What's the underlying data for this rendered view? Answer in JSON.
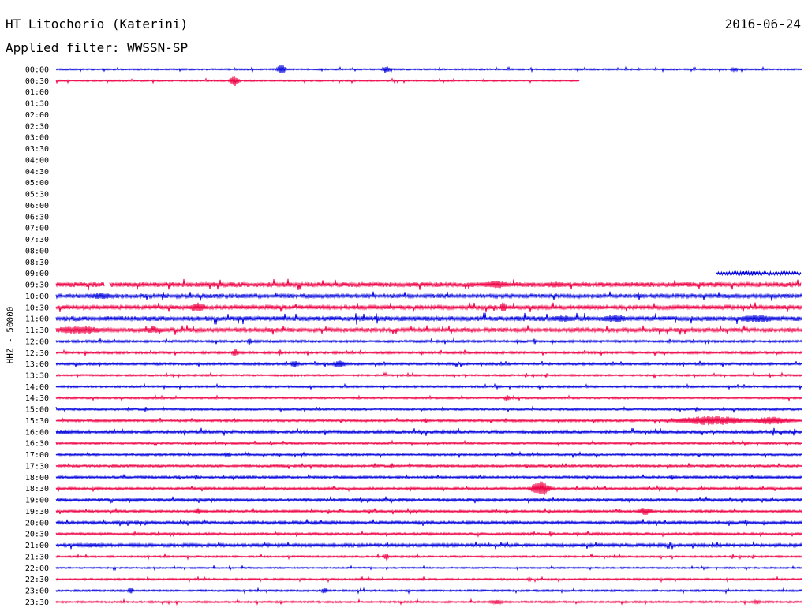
{
  "header": {
    "station": "HT Litochorio (Katerini)",
    "date": "2016-06-24",
    "filter": "Applied filter: WWSSN-SP",
    "ylabel": "HHZ - 50000"
  },
  "colors": {
    "a": "#0000dd",
    "b": "#ee0044"
  },
  "chart_data": {
    "type": "line",
    "title": "HT Litochorio (Katerini)",
    "subtitle": "Applied filter: WWSSN-SP",
    "date": "2016-06-24",
    "ylabel": "HHZ - 50000",
    "xlabel": "",
    "row_minutes": 30,
    "row_labels": [
      "00:00",
      "00:30",
      "01:00",
      "01:30",
      "02:00",
      "02:30",
      "03:00",
      "03:30",
      "04:00",
      "04:30",
      "05:00",
      "05:30",
      "06:00",
      "06:30",
      "07:00",
      "07:30",
      "08:00",
      "08:30",
      "09:00",
      "09:30",
      "10:00",
      "10:30",
      "11:00",
      "11:30",
      "12:00",
      "12:30",
      "13:00",
      "13:30",
      "14:00",
      "14:30",
      "15:00",
      "15:30",
      "16:00",
      "16:30",
      "17:00",
      "17:30",
      "18:00",
      "18:30",
      "19:00",
      "19:30",
      "20:00",
      "20:30",
      "21:00",
      "21:30",
      "22:00",
      "22:30",
      "23:00",
      "23:30"
    ],
    "traces": [
      {
        "row": "00:00",
        "start": 0,
        "end": 1,
        "noise": 1,
        "events": [
          [
            0.302,
            0.006,
            6
          ],
          [
            0.443,
            0.005,
            5
          ],
          [
            0.91,
            0.005,
            3
          ]
        ]
      },
      {
        "row": "00:30",
        "start": 0,
        "end": 0.702,
        "noise": 1,
        "events": [
          [
            0.239,
            0.006,
            7
          ]
        ]
      },
      {
        "row": "09:00",
        "start": 0.886,
        "end": 1,
        "noise": 2,
        "events": [
          [
            0.93,
            0.02,
            3
          ]
        ]
      },
      {
        "row": "09:30",
        "start": 0,
        "end": 1,
        "noise": 3,
        "gaps": [
          [
            0.065,
            0.072
          ]
        ],
        "events": [
          [
            0.59,
            0.02,
            5
          ],
          [
            0.67,
            0.02,
            4
          ]
        ]
      },
      {
        "row": "10:00",
        "start": 0,
        "end": 1,
        "noise": 2.5,
        "events": [
          [
            0.06,
            0.02,
            4
          ]
        ]
      },
      {
        "row": "10:30",
        "start": 0,
        "end": 1,
        "noise": 2.5,
        "events": [
          [
            0.19,
            0.012,
            6
          ],
          [
            0.6,
            0.004,
            8
          ]
        ]
      },
      {
        "row": "11:00",
        "start": 0,
        "end": 1,
        "noise": 3,
        "events": [
          [
            0.68,
            0.02,
            4
          ],
          [
            0.75,
            0.02,
            5
          ],
          [
            0.94,
            0.03,
            5
          ]
        ]
      },
      {
        "row": "11:30",
        "start": 0,
        "end": 1,
        "noise": 2.5,
        "events": [
          [
            0.03,
            0.04,
            5
          ],
          [
            0.13,
            0.02,
            4
          ]
        ]
      },
      {
        "row": "12:00",
        "start": 0,
        "end": 1,
        "noise": 1.5,
        "events": [
          [
            0.26,
            0.003,
            5
          ]
        ]
      },
      {
        "row": "12:30",
        "start": 0,
        "end": 1,
        "noise": 1.5,
        "events": [
          [
            0.24,
            0.004,
            6
          ],
          [
            0.3,
            0.002,
            5
          ]
        ]
      },
      {
        "row": "13:00",
        "start": 0,
        "end": 1,
        "noise": 1.5,
        "events": [
          [
            0.32,
            0.006,
            5
          ],
          [
            0.38,
            0.008,
            5
          ]
        ]
      },
      {
        "row": "13:30",
        "start": 0,
        "end": 1,
        "noise": 1.2,
        "events": []
      },
      {
        "row": "14:00",
        "start": 0,
        "end": 1,
        "noise": 1.3,
        "events": []
      },
      {
        "row": "14:30",
        "start": 0,
        "end": 1,
        "noise": 1.2,
        "events": [
          [
            0.605,
            0.004,
            4
          ]
        ]
      },
      {
        "row": "15:00",
        "start": 0,
        "end": 1,
        "noise": 1.3,
        "events": []
      },
      {
        "row": "15:30",
        "start": 0,
        "end": 1,
        "noise": 1.5,
        "events": [
          [
            0.88,
            0.05,
            6
          ],
          [
            0.96,
            0.03,
            5
          ]
        ]
      },
      {
        "row": "16:00",
        "start": 0,
        "end": 1,
        "noise": 2,
        "events": [
          [
            0.01,
            0.02,
            3
          ]
        ]
      },
      {
        "row": "16:30",
        "start": 0,
        "end": 1,
        "noise": 1.3,
        "events": []
      },
      {
        "row": "17:00",
        "start": 0,
        "end": 1,
        "noise": 1.3,
        "events": [
          [
            0.23,
            0.005,
            3
          ]
        ]
      },
      {
        "row": "17:30",
        "start": 0,
        "end": 1,
        "noise": 1.5,
        "events": []
      },
      {
        "row": "18:00",
        "start": 0,
        "end": 1,
        "noise": 1.5,
        "events": []
      },
      {
        "row": "18:30",
        "start": 0,
        "end": 1,
        "noise": 1.5,
        "events": [
          [
            0.65,
            0.012,
            10
          ]
        ]
      },
      {
        "row": "19:00",
        "start": 0,
        "end": 1,
        "noise": 1.8,
        "events": []
      },
      {
        "row": "19:30",
        "start": 0,
        "end": 1,
        "noise": 1.5,
        "events": [
          [
            0.19,
            0.004,
            4
          ],
          [
            0.79,
            0.01,
            5
          ]
        ]
      },
      {
        "row": "20:00",
        "start": 0,
        "end": 1,
        "noise": 1.8,
        "events": []
      },
      {
        "row": "20:30",
        "start": 0,
        "end": 1,
        "noise": 1.5,
        "events": []
      },
      {
        "row": "21:00",
        "start": 0,
        "end": 1,
        "noise": 2,
        "events": [
          [
            0.05,
            0.02,
            3
          ]
        ]
      },
      {
        "row": "21:30",
        "start": 0,
        "end": 1,
        "noise": 1.2,
        "events": [
          [
            0.443,
            0.003,
            5
          ]
        ]
      },
      {
        "row": "22:00",
        "start": 0,
        "end": 1,
        "noise": 1,
        "events": []
      },
      {
        "row": "22:30",
        "start": 0,
        "end": 1,
        "noise": 1.2,
        "events": [
          [
            0.635,
            0.003,
            3
          ]
        ]
      },
      {
        "row": "23:00",
        "start": 0,
        "end": 1,
        "noise": 1.2,
        "events": [
          [
            0.1,
            0.004,
            4
          ],
          [
            0.36,
            0.004,
            4
          ]
        ]
      },
      {
        "row": "23:30",
        "start": 0,
        "end": 1,
        "noise": 1.2,
        "events": [
          [
            0.59,
            0.01,
            3
          ],
          [
            0.94,
            0.005,
            3
          ]
        ]
      }
    ]
  }
}
